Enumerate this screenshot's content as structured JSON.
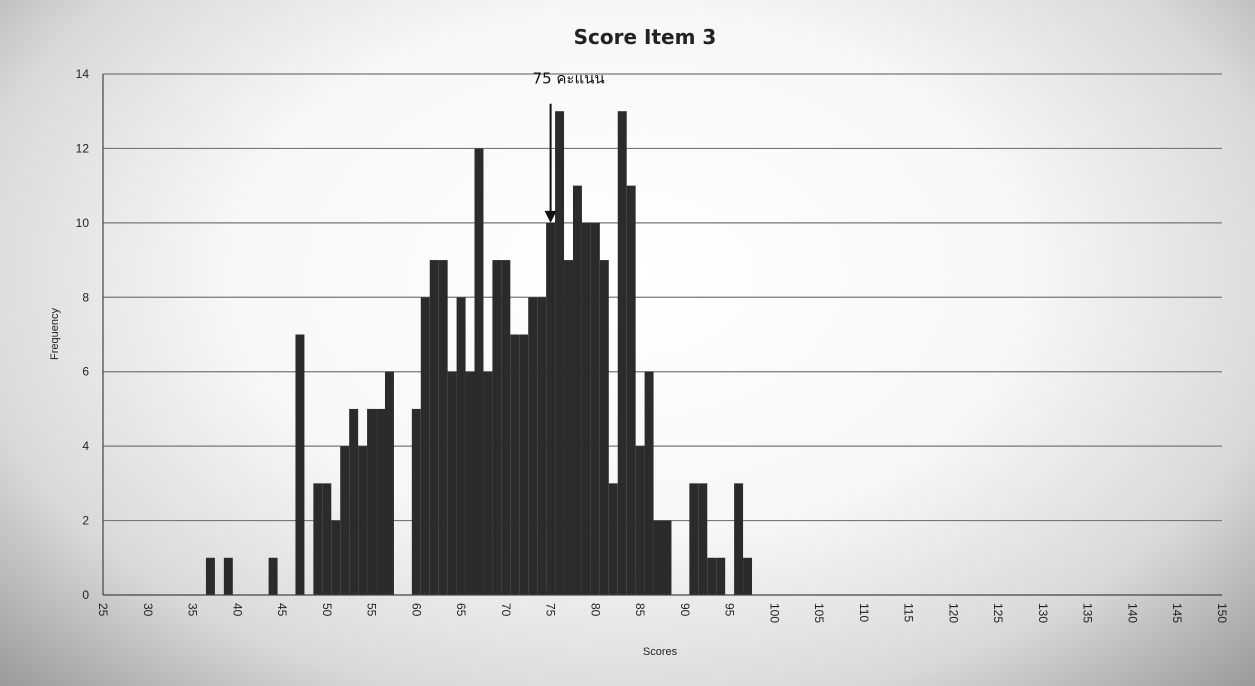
{
  "chart_data": {
    "type": "bar",
    "title": "Score Item 3",
    "xlabel": "Scores",
    "ylabel": "Frequency",
    "xlim": [
      25,
      150
    ],
    "ylim": [
      0,
      14
    ],
    "x_ticks": [
      "25",
      "30",
      "35",
      "40",
      "45",
      "50",
      "55",
      "60",
      "65",
      "70",
      "75",
      "80",
      "85",
      "90",
      "95",
      "100",
      "105",
      "110",
      "115",
      "120",
      "125",
      "130",
      "135",
      "140",
      "145",
      "150"
    ],
    "y_ticks": [
      "0",
      "2",
      "4",
      "6",
      "8",
      "10",
      "12",
      "14"
    ],
    "grid": true,
    "bar_color": "#2b2b2b",
    "annotation": {
      "text": "75 คะแนน",
      "x": 75
    },
    "x": [
      37,
      39,
      44,
      47,
      49,
      50,
      51,
      52,
      53,
      54,
      55,
      56,
      57,
      58,
      60,
      61,
      62,
      63,
      64,
      65,
      66,
      67,
      68,
      69,
      70,
      71,
      72,
      73,
      74,
      75,
      76,
      77,
      78,
      79,
      80,
      81,
      82,
      83,
      84,
      85,
      86,
      87,
      88,
      89,
      91,
      92,
      93,
      94,
      96,
      97
    ],
    "values": [
      1,
      1,
      1,
      7,
      3,
      3,
      2,
      4,
      5,
      4,
      5,
      5,
      6,
      0,
      5,
      8,
      9,
      9,
      6,
      8,
      6,
      12,
      6,
      9,
      9,
      7,
      7,
      8,
      8,
      10,
      13,
      9,
      11,
      10,
      10,
      9,
      3,
      13,
      11,
      4,
      6,
      2,
      2,
      0,
      3,
      3,
      1,
      1,
      3,
      1
    ]
  }
}
